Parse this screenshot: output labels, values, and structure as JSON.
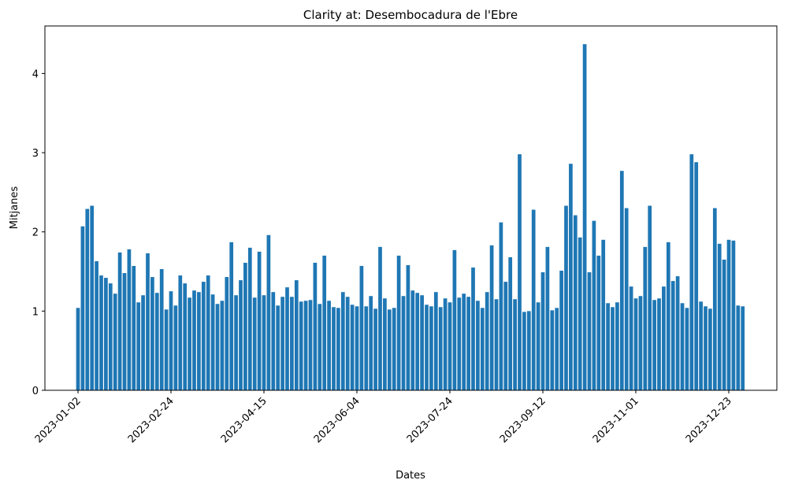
{
  "chart_data": {
    "type": "bar",
    "title": "Clarity at: Desembocadura de l'Ebre",
    "x_label": "Dates",
    "y_label": "Mitjanes",
    "color": "#1f77b4",
    "categories": [
      "2023-01-02",
      null,
      null,
      null,
      null,
      null,
      null,
      null,
      null,
      null,
      null,
      null,
      null,
      null,
      null,
      null,
      null,
      null,
      null,
      null,
      "2023-02-24",
      null,
      null,
      null,
      null,
      null,
      null,
      null,
      null,
      null,
      null,
      null,
      null,
      null,
      null,
      null,
      null,
      null,
      null,
      null,
      "2023-04-15",
      null,
      null,
      null,
      null,
      null,
      null,
      null,
      null,
      null,
      null,
      null,
      null,
      null,
      null,
      null,
      null,
      null,
      null,
      null,
      "2023-06-04",
      null,
      null,
      null,
      null,
      null,
      null,
      null,
      null,
      null,
      null,
      null,
      null,
      null,
      null,
      null,
      null,
      null,
      null,
      null,
      "2023-07-24",
      null,
      null,
      null,
      null,
      null,
      null,
      null,
      null,
      null,
      null,
      null,
      null,
      null,
      null,
      null,
      null,
      null,
      null,
      null,
      "2023-09-12",
      null,
      null,
      null,
      null,
      null,
      null,
      null,
      null,
      null,
      null,
      null,
      null,
      null,
      null,
      null,
      null,
      null,
      null,
      null,
      "2023-11-01",
      null,
      null,
      null,
      null,
      null,
      null,
      null,
      null,
      null,
      null,
      null,
      null,
      null,
      null,
      null,
      null,
      null,
      null,
      null,
      "2023-12-23",
      null,
      null,
      null
    ],
    "values": [
      1.04,
      2.07,
      2.29,
      2.33,
      1.63,
      1.45,
      1.42,
      1.35,
      1.22,
      1.74,
      1.48,
      1.78,
      1.57,
      1.11,
      1.2,
      1.73,
      1.43,
      1.23,
      1.53,
      1.02,
      1.25,
      1.07,
      1.45,
      1.35,
      1.17,
      1.26,
      1.24,
      1.37,
      1.45,
      1.21,
      1.09,
      1.13,
      1.43,
      1.87,
      1.2,
      1.39,
      1.61,
      1.8,
      1.17,
      1.75,
      1.2,
      1.96,
      1.24,
      1.07,
      1.18,
      1.3,
      1.18,
      1.39,
      1.12,
      1.13,
      1.14,
      1.61,
      1.09,
      1.7,
      1.13,
      1.05,
      1.04,
      1.24,
      1.18,
      1.08,
      1.06,
      1.57,
      1.06,
      1.19,
      1.03,
      1.81,
      1.16,
      1.02,
      1.04,
      1.7,
      1.19,
      1.58,
      1.26,
      1.23,
      1.2,
      1.08,
      1.06,
      1.24,
      1.05,
      1.16,
      1.11,
      1.77,
      1.17,
      1.22,
      1.18,
      1.55,
      1.13,
      1.04,
      1.24,
      1.83,
      1.15,
      2.12,
      1.37,
      1.68,
      1.15,
      2.98,
      0.99,
      1.0,
      2.28,
      1.11,
      1.49,
      1.81,
      1.01,
      1.04,
      1.51,
      2.33,
      2.86,
      2.21,
      1.93,
      4.37,
      1.49,
      2.14,
      1.7,
      1.9,
      1.1,
      1.05,
      1.11,
      2.77,
      2.3,
      1.31,
      1.16,
      1.19,
      1.81,
      2.33,
      1.14,
      1.16,
      1.31,
      1.87,
      1.38,
      1.44,
      1.1,
      1.04,
      2.98,
      2.88,
      1.12,
      1.06,
      1.03,
      2.3,
      1.85,
      1.65,
      1.9,
      1.89,
      1.07,
      1.06
    ],
    "ylim": [
      0,
      4.6
    ],
    "yticks": [
      0,
      1,
      2,
      3,
      4
    ]
  }
}
